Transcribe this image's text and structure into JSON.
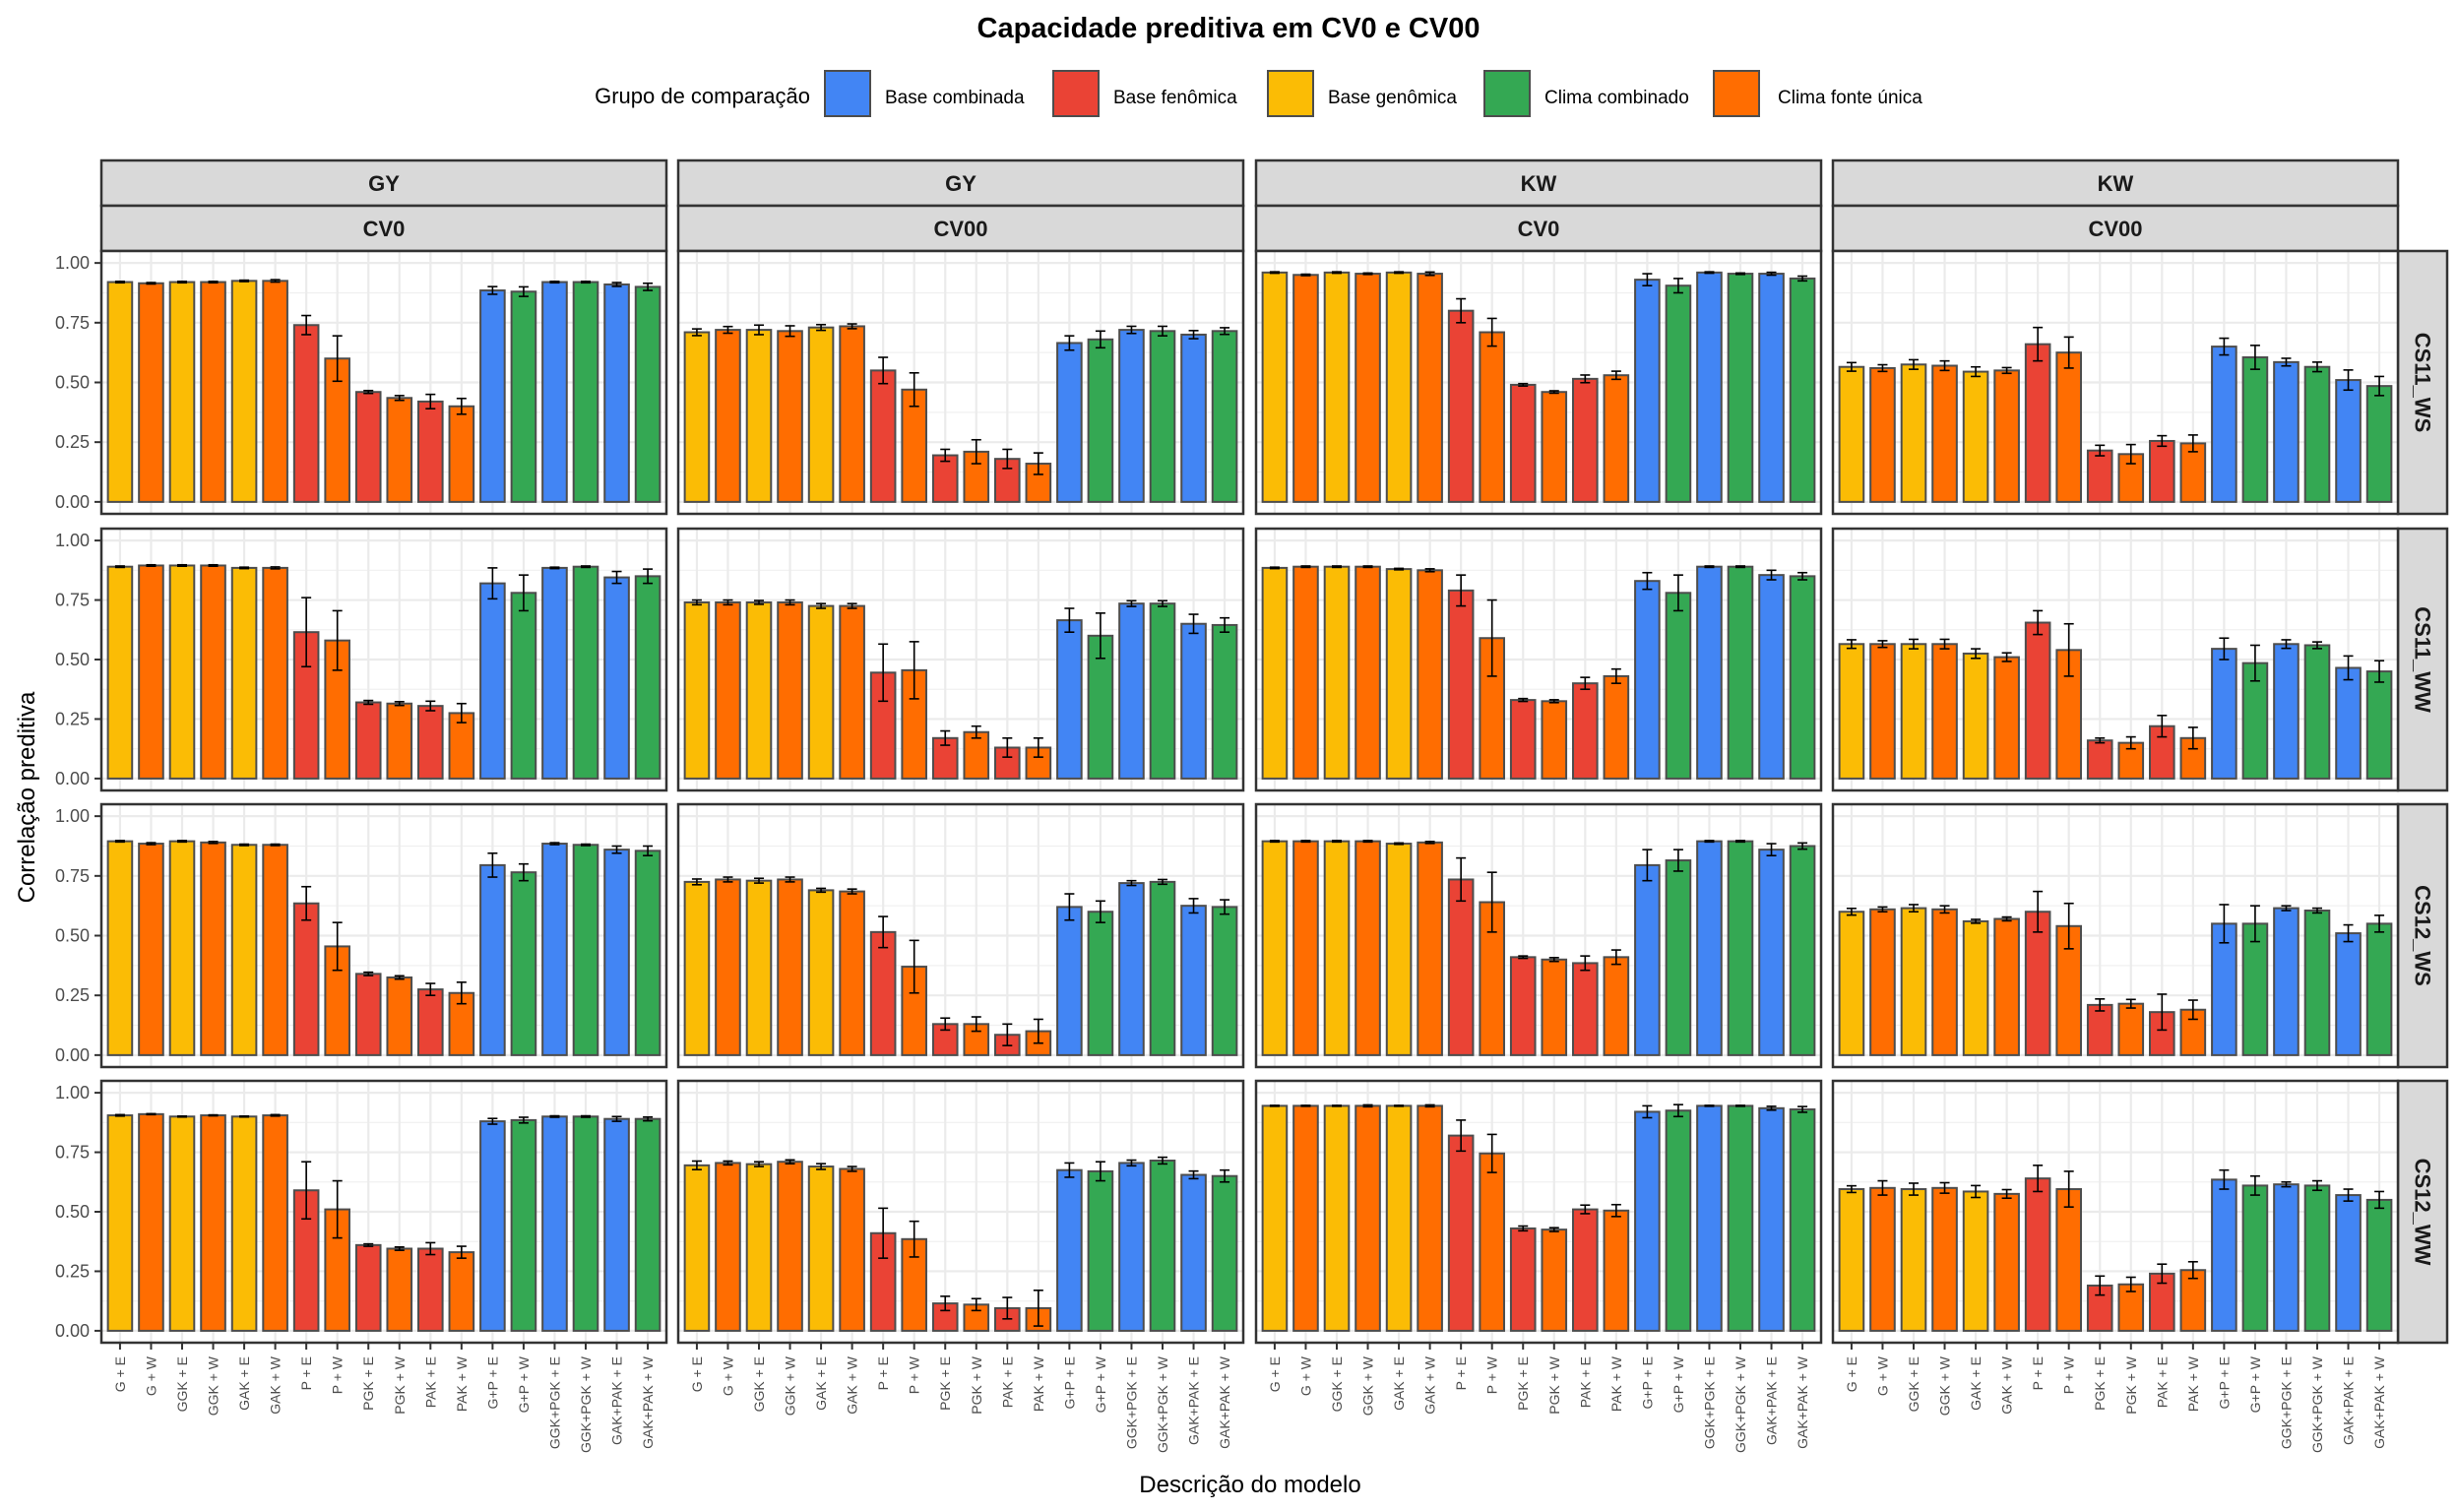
{
  "chart_data": {
    "type": "bar",
    "title": "Capacidade preditiva em CV0 e CV00",
    "xlabel": "Descrição do modelo",
    "ylabel": "Correlação preditiva",
    "ylim": [
      0,
      1.05
    ],
    "yticks": [
      "0.00",
      "0.25",
      "0.50",
      "0.75",
      "1.00"
    ],
    "ytick_values": [
      0,
      0.25,
      0.5,
      0.75,
      1.0
    ],
    "grid": true,
    "error_bars": true,
    "legend": {
      "title": "Grupo de comparação",
      "position": "top",
      "entries": [
        {
          "key": "bc",
          "label": "Base combinada",
          "color": "#4285F4"
        },
        {
          "key": "bf",
          "label": "Base fenômica",
          "color": "#EA4335"
        },
        {
          "key": "bg",
          "label": "Base genômica",
          "color": "#FBBC05"
        },
        {
          "key": "cc",
          "label": "Clima combinado",
          "color": "#34A853"
        },
        {
          "key": "cf",
          "label": "Clima fonte única",
          "color": "#FF6D01"
        }
      ]
    },
    "categories": [
      "G + E",
      "G + W",
      "GGK + E",
      "GGK + W",
      "GAK + E",
      "GAK + W",
      "P + E",
      "P + W",
      "PGK + E",
      "PGK + W",
      "PAK + E",
      "PAK + W",
      "G+P + E",
      "G+P + W",
      "GGK+PGK + E",
      "GGK+PGK + W",
      "GAK+PAK + E",
      "GAK+PAK + W"
    ],
    "category_groups": [
      "bg",
      "cf",
      "bg",
      "cf",
      "bg",
      "cf",
      "bf",
      "cf",
      "bf",
      "cf",
      "bf",
      "cf",
      "bc",
      "cc",
      "bc",
      "cc",
      "bc",
      "cc"
    ],
    "facet_columns": [
      {
        "trait": "GY",
        "scenario": "CV0"
      },
      {
        "trait": "GY",
        "scenario": "CV00"
      },
      {
        "trait": "KW",
        "scenario": "CV0"
      },
      {
        "trait": "KW",
        "scenario": "CV00"
      }
    ],
    "facet_rows": [
      "CS11_WS",
      "CS11_WW",
      "CS12_WS",
      "CS12_WW"
    ],
    "panels": [
      [
        {
          "values": [
            0.92,
            0.915,
            0.92,
            0.92,
            0.925,
            0.925,
            0.74,
            0.6,
            0.46,
            0.435,
            0.42,
            0.4,
            0.885,
            0.88,
            0.92,
            0.92,
            0.91,
            0.9
          ],
          "errors": [
            0.003,
            0.003,
            0.003,
            0.003,
            0.003,
            0.005,
            0.04,
            0.095,
            0.006,
            0.01,
            0.03,
            0.033,
            0.016,
            0.02,
            0.003,
            0.003,
            0.008,
            0.015
          ]
        },
        {
          "values": [
            0.71,
            0.72,
            0.72,
            0.715,
            0.73,
            0.735,
            0.55,
            0.47,
            0.195,
            0.21,
            0.18,
            0.16,
            0.665,
            0.68,
            0.72,
            0.715,
            0.7,
            0.715
          ],
          "errors": [
            0.014,
            0.014,
            0.02,
            0.022,
            0.012,
            0.01,
            0.055,
            0.07,
            0.025,
            0.05,
            0.04,
            0.045,
            0.03,
            0.035,
            0.015,
            0.02,
            0.017,
            0.014
          ]
        },
        {
          "values": [
            0.96,
            0.95,
            0.96,
            0.955,
            0.96,
            0.955,
            0.8,
            0.71,
            0.49,
            0.46,
            0.515,
            0.53,
            0.93,
            0.905,
            0.96,
            0.955,
            0.955,
            0.935
          ],
          "errors": [
            0.003,
            0.003,
            0.003,
            0.003,
            0.003,
            0.007,
            0.05,
            0.058,
            0.005,
            0.005,
            0.016,
            0.017,
            0.025,
            0.03,
            0.003,
            0.003,
            0.006,
            0.01
          ]
        },
        {
          "values": [
            0.565,
            0.56,
            0.575,
            0.57,
            0.545,
            0.55,
            0.66,
            0.625,
            0.215,
            0.2,
            0.255,
            0.245,
            0.65,
            0.605,
            0.585,
            0.565,
            0.51,
            0.485
          ],
          "errors": [
            0.018,
            0.014,
            0.02,
            0.02,
            0.02,
            0.012,
            0.07,
            0.065,
            0.022,
            0.04,
            0.022,
            0.035,
            0.035,
            0.05,
            0.016,
            0.02,
            0.042,
            0.04
          ]
        }
      ],
      [
        {
          "values": [
            0.89,
            0.895,
            0.895,
            0.895,
            0.885,
            0.885,
            0.615,
            0.58,
            0.32,
            0.315,
            0.305,
            0.275,
            0.82,
            0.78,
            0.885,
            0.89,
            0.845,
            0.85
          ],
          "errors": [
            0.003,
            0.003,
            0.003,
            0.003,
            0.003,
            0.004,
            0.145,
            0.125,
            0.008,
            0.008,
            0.02,
            0.04,
            0.065,
            0.075,
            0.003,
            0.003,
            0.025,
            0.03
          ]
        },
        {
          "values": [
            0.74,
            0.74,
            0.74,
            0.74,
            0.725,
            0.725,
            0.445,
            0.455,
            0.17,
            0.195,
            0.13,
            0.13,
            0.665,
            0.6,
            0.735,
            0.735,
            0.65,
            0.645
          ],
          "errors": [
            0.01,
            0.01,
            0.008,
            0.01,
            0.01,
            0.01,
            0.12,
            0.12,
            0.03,
            0.025,
            0.04,
            0.04,
            0.05,
            0.095,
            0.012,
            0.012,
            0.04,
            0.03
          ]
        },
        {
          "values": [
            0.885,
            0.89,
            0.89,
            0.89,
            0.88,
            0.875,
            0.79,
            0.59,
            0.33,
            0.325,
            0.4,
            0.43,
            0.83,
            0.78,
            0.89,
            0.89,
            0.855,
            0.85
          ],
          "errors": [
            0.003,
            0.003,
            0.003,
            0.003,
            0.003,
            0.006,
            0.065,
            0.16,
            0.006,
            0.006,
            0.025,
            0.03,
            0.035,
            0.075,
            0.003,
            0.003,
            0.02,
            0.015
          ]
        },
        {
          "values": [
            0.565,
            0.565,
            0.565,
            0.565,
            0.525,
            0.51,
            0.655,
            0.54,
            0.16,
            0.15,
            0.22,
            0.17,
            0.545,
            0.485,
            0.565,
            0.56,
            0.465,
            0.45
          ],
          "errors": [
            0.018,
            0.014,
            0.02,
            0.02,
            0.02,
            0.018,
            0.05,
            0.11,
            0.01,
            0.025,
            0.045,
            0.045,
            0.045,
            0.075,
            0.018,
            0.014,
            0.05,
            0.045
          ]
        }
      ],
      [
        {
          "values": [
            0.895,
            0.885,
            0.895,
            0.89,
            0.88,
            0.88,
            0.635,
            0.455,
            0.34,
            0.325,
            0.275,
            0.26,
            0.795,
            0.765,
            0.885,
            0.88,
            0.86,
            0.855
          ],
          "errors": [
            0.003,
            0.004,
            0.003,
            0.004,
            0.003,
            0.003,
            0.07,
            0.1,
            0.007,
            0.007,
            0.025,
            0.045,
            0.05,
            0.035,
            0.004,
            0.003,
            0.015,
            0.02
          ]
        },
        {
          "values": [
            0.725,
            0.735,
            0.73,
            0.735,
            0.69,
            0.685,
            0.515,
            0.37,
            0.13,
            0.13,
            0.085,
            0.1,
            0.62,
            0.6,
            0.72,
            0.725,
            0.625,
            0.62
          ],
          "errors": [
            0.012,
            0.01,
            0.01,
            0.01,
            0.008,
            0.01,
            0.065,
            0.11,
            0.025,
            0.03,
            0.045,
            0.05,
            0.055,
            0.045,
            0.01,
            0.01,
            0.03,
            0.03
          ]
        },
        {
          "values": [
            0.895,
            0.895,
            0.895,
            0.895,
            0.885,
            0.89,
            0.735,
            0.64,
            0.41,
            0.4,
            0.385,
            0.41,
            0.795,
            0.815,
            0.895,
            0.895,
            0.86,
            0.875
          ],
          "errors": [
            0.003,
            0.003,
            0.003,
            0.003,
            0.003,
            0.004,
            0.09,
            0.125,
            0.005,
            0.008,
            0.03,
            0.03,
            0.065,
            0.045,
            0.003,
            0.003,
            0.025,
            0.013
          ]
        },
        {
          "values": [
            0.6,
            0.61,
            0.615,
            0.61,
            0.56,
            0.57,
            0.6,
            0.54,
            0.21,
            0.215,
            0.18,
            0.19,
            0.55,
            0.55,
            0.615,
            0.605,
            0.51,
            0.55
          ],
          "errors": [
            0.014,
            0.01,
            0.015,
            0.015,
            0.008,
            0.008,
            0.085,
            0.095,
            0.025,
            0.018,
            0.075,
            0.04,
            0.08,
            0.075,
            0.01,
            0.01,
            0.035,
            0.035
          ]
        }
      ],
      [
        {
          "values": [
            0.905,
            0.91,
            0.9,
            0.905,
            0.9,
            0.905,
            0.59,
            0.51,
            0.36,
            0.345,
            0.345,
            0.33,
            0.88,
            0.885,
            0.9,
            0.9,
            0.89,
            0.89
          ],
          "errors": [
            0.003,
            0.002,
            0.002,
            0.002,
            0.002,
            0.003,
            0.12,
            0.12,
            0.005,
            0.007,
            0.025,
            0.025,
            0.012,
            0.012,
            0.003,
            0.003,
            0.01,
            0.008
          ]
        },
        {
          "values": [
            0.695,
            0.705,
            0.7,
            0.71,
            0.69,
            0.68,
            0.41,
            0.385,
            0.115,
            0.11,
            0.095,
            0.095,
            0.675,
            0.67,
            0.705,
            0.715,
            0.655,
            0.65
          ],
          "errors": [
            0.018,
            0.008,
            0.01,
            0.008,
            0.012,
            0.01,
            0.105,
            0.075,
            0.03,
            0.025,
            0.045,
            0.075,
            0.03,
            0.04,
            0.012,
            0.014,
            0.016,
            0.025
          ]
        },
        {
          "values": [
            0.945,
            0.945,
            0.945,
            0.945,
            0.945,
            0.945,
            0.82,
            0.745,
            0.43,
            0.425,
            0.51,
            0.505,
            0.92,
            0.925,
            0.945,
            0.945,
            0.935,
            0.93
          ],
          "errors": [
            0.002,
            0.002,
            0.002,
            0.004,
            0.002,
            0.004,
            0.065,
            0.08,
            0.01,
            0.008,
            0.018,
            0.025,
            0.025,
            0.025,
            0.002,
            0.002,
            0.008,
            0.012
          ]
        },
        {
          "values": [
            0.595,
            0.6,
            0.595,
            0.6,
            0.585,
            0.575,
            0.64,
            0.595,
            0.19,
            0.195,
            0.24,
            0.255,
            0.635,
            0.61,
            0.615,
            0.61,
            0.57,
            0.55
          ],
          "errors": [
            0.014,
            0.03,
            0.025,
            0.022,
            0.025,
            0.018,
            0.055,
            0.075,
            0.04,
            0.03,
            0.04,
            0.035,
            0.04,
            0.04,
            0.01,
            0.02,
            0.025,
            0.035
          ]
        }
      ]
    ]
  }
}
